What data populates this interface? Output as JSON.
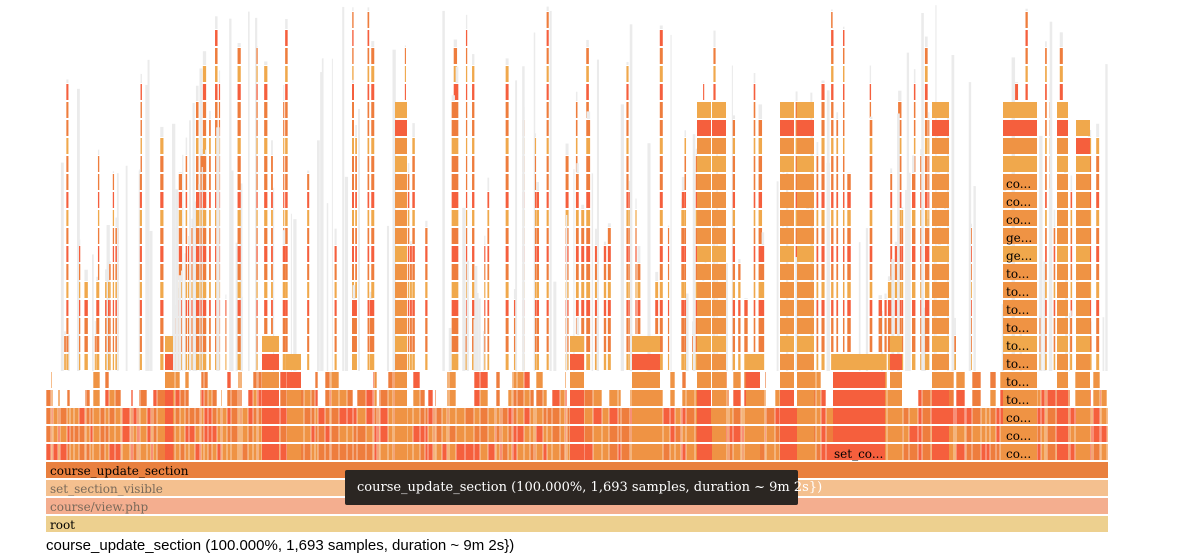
{
  "flamegraph": {
    "colors": {
      "root": "#edd08f",
      "view": "#f4ae8f",
      "visible": "#f4c08f",
      "update": "#e9803f",
      "orange": "#ef9344",
      "red": "#f55f3d",
      "deep": "#ee7d3d",
      "light": "#f0a84c",
      "tall": "#ebebeb",
      "selected": "#e9803f"
    },
    "base_frames": [
      {
        "name": "root",
        "label": "root",
        "color_key": "root"
      },
      {
        "name": "view",
        "label": "course/view.php",
        "color_key": "view"
      },
      {
        "name": "visible",
        "label": "set_section_visible",
        "color_key": "visible"
      },
      {
        "name": "update",
        "label": "course_update_section",
        "color_key": "update"
      }
    ],
    "frame_labels": [
      {
        "name": "set-co",
        "label": "set_co..."
      },
      {
        "name": "co-1",
        "label": "co..."
      },
      {
        "name": "co-2",
        "label": "co..."
      },
      {
        "name": "co-3",
        "label": "co..."
      },
      {
        "name": "ge-1",
        "label": "ge..."
      },
      {
        "name": "ge-2",
        "label": "ge..."
      },
      {
        "name": "to-1",
        "label": "to..."
      },
      {
        "name": "to-2",
        "label": "to..."
      },
      {
        "name": "to-3",
        "label": "to..."
      },
      {
        "name": "to-4",
        "label": "to..."
      },
      {
        "name": "to-5",
        "label": "to..."
      },
      {
        "name": "to-6",
        "label": "to..."
      },
      {
        "name": "to-7",
        "label": "to..."
      },
      {
        "name": "to-8",
        "label": "to..."
      },
      {
        "name": "co-4",
        "label": "co..."
      },
      {
        "name": "co-5",
        "label": "co..."
      },
      {
        "name": "co-6",
        "label": "co..."
      }
    ]
  },
  "tooltip": {
    "text": "course_update_section (100.000%, 1,693 samples, duration ~ 9m 2s})"
  },
  "status": {
    "text": "course_update_section (100.000%, 1,693 samples, duration ~ 9m 2s})"
  }
}
